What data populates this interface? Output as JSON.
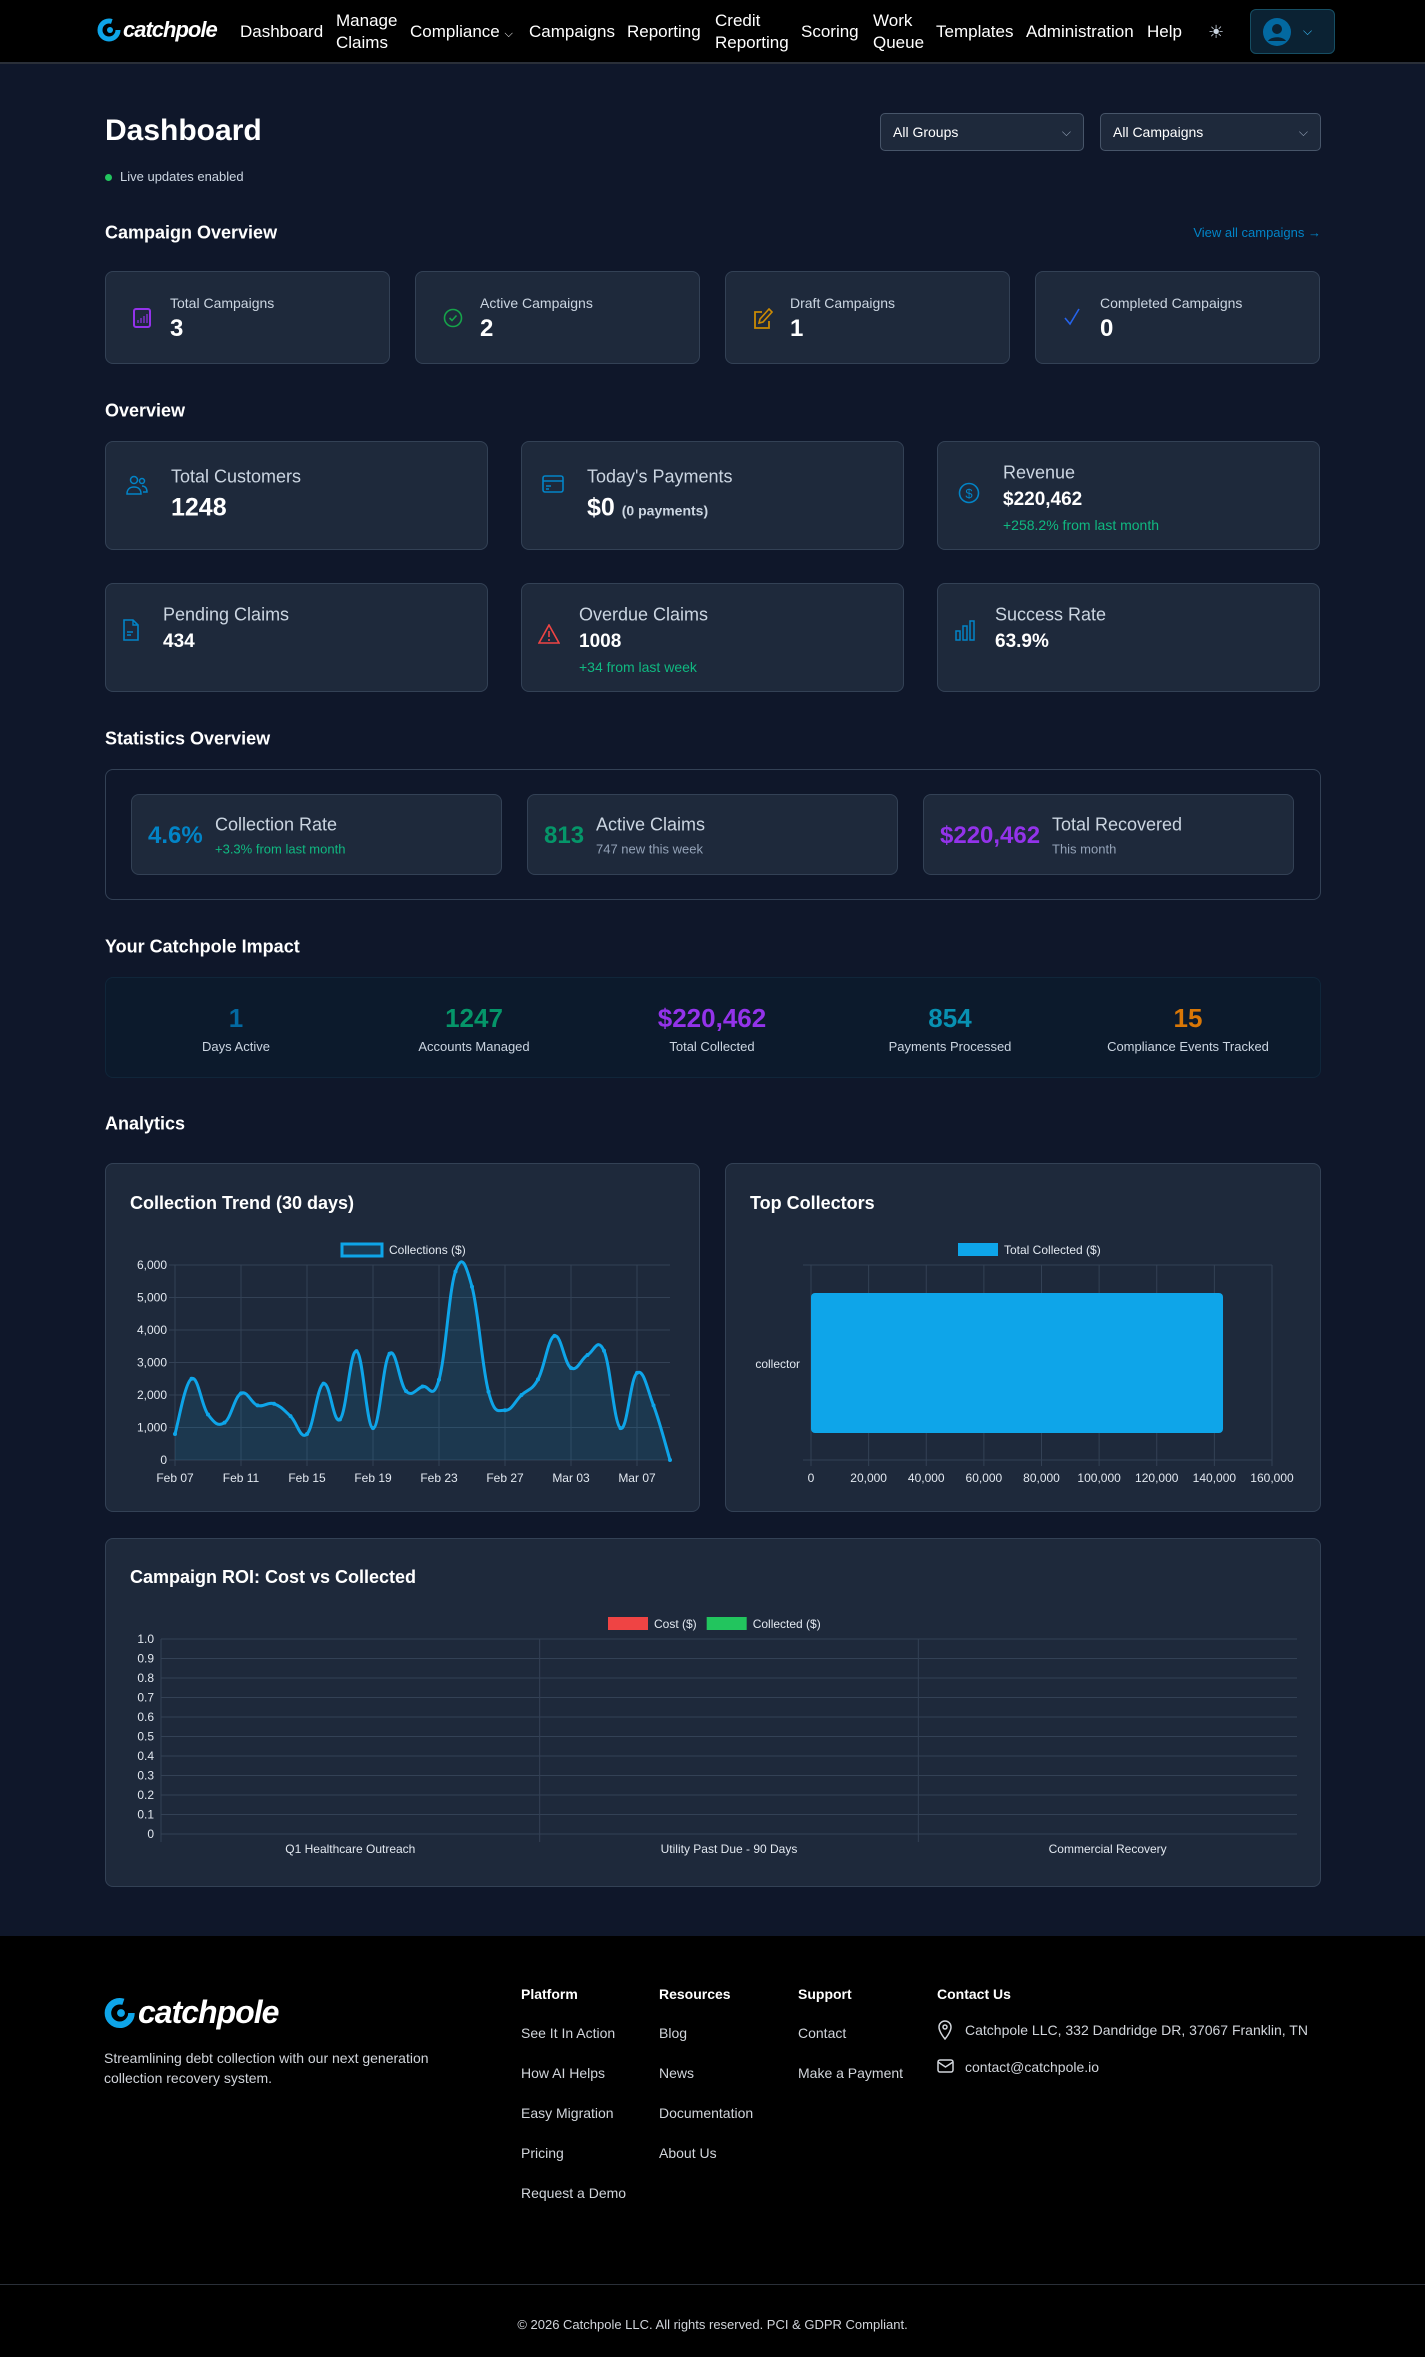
{
  "nav": {
    "brand": "catchpole",
    "items": [
      "Dashboard",
      "Manage Claims",
      "Compliance",
      "Campaigns",
      "Reporting",
      "Credit Reporting",
      "Scoring",
      "Work Queue",
      "Templates",
      "Administration",
      "Help"
    ],
    "manage_l1": "Manage",
    "manage_l2": "Claims",
    "credit_l1": "Credit",
    "credit_l2": "Reporting",
    "work_l1": "Work",
    "work_l2": "Queue",
    "theme_icon": "sun-icon",
    "avatar_icon": "user-circle-icon"
  },
  "header": {
    "title": "Dashboard",
    "live": "Live updates enabled",
    "group_select": "All Groups",
    "campaign_select": "All Campaigns"
  },
  "campaign_overview": {
    "title": "Campaign Overview",
    "view_all": "View all campaigns →",
    "cards": [
      {
        "label": "Total Campaigns",
        "value": "3",
        "icon": "chart-icon",
        "color": "#9333ea"
      },
      {
        "label": "Active Campaigns",
        "value": "2",
        "icon": "check-circle-icon",
        "color": "#16a34a"
      },
      {
        "label": "Draft Campaigns",
        "value": "1",
        "icon": "pencil-icon",
        "color": "#ca8a04"
      },
      {
        "label": "Completed Campaigns",
        "value": "0",
        "icon": "check-icon",
        "color": "#2563eb"
      }
    ]
  },
  "overview": {
    "title": "Overview",
    "cards": [
      {
        "label": "Total Customers",
        "value": "1248",
        "icon": "users-icon"
      },
      {
        "label": "Today's Payments",
        "value": "$0",
        "extra": "(0 payments)",
        "icon": "credit-card-icon"
      },
      {
        "label": "Revenue",
        "value": "$220,462",
        "sub": "+258.2% from last month",
        "icon": "dollar-icon"
      },
      {
        "label": "Pending Claims",
        "value": "434",
        "icon": "document-icon"
      },
      {
        "label": "Overdue Claims",
        "value": "1008",
        "sub": "+34 from last week",
        "icon": "warning-icon"
      },
      {
        "label": "Success Rate",
        "value": "63.9%",
        "icon": "bar-chart-icon"
      }
    ]
  },
  "statistics": {
    "title": "Statistics Overview",
    "cards": [
      {
        "value": "4.6%",
        "label": "Collection Rate",
        "sub": "+3.3% from last month",
        "color": "#0284c7"
      },
      {
        "value": "813",
        "label": "Active Claims",
        "sub": "747 new this week",
        "color": "#059669"
      },
      {
        "value": "$220,462",
        "label": "Total Recovered",
        "sub": "This month",
        "color": "#9333ea"
      }
    ]
  },
  "impact": {
    "title": "Your Catchpole Impact",
    "items": [
      {
        "value": "1",
        "label": "Days Active",
        "color": "#0369a1"
      },
      {
        "value": "1247",
        "label": "Accounts Managed",
        "color": "#059669"
      },
      {
        "value": "$220,462",
        "label": "Total Collected",
        "color": "#9333ea"
      },
      {
        "value": "854",
        "label": "Payments Processed",
        "color": "#0891b2"
      },
      {
        "value": "15",
        "label": "Compliance Events Tracked",
        "color": "#d97706"
      }
    ]
  },
  "analytics": {
    "title": "Analytics"
  },
  "chart_data": [
    {
      "type": "line",
      "title": "Collection Trend (30 days)",
      "legend": "Collections ($)",
      "color": "#0ea5e9",
      "x": [
        "Feb 07",
        "Feb 08",
        "Feb 09",
        "Feb 10",
        "Feb 11",
        "Feb 12",
        "Feb 13",
        "Feb 14",
        "Feb 15",
        "Feb 16",
        "Feb 17",
        "Feb 18",
        "Feb 19",
        "Feb 20",
        "Feb 21",
        "Feb 22",
        "Feb 23",
        "Feb 24",
        "Feb 25",
        "Feb 26",
        "Feb 27",
        "Feb 28",
        "Mar 01",
        "Mar 02",
        "Mar 03",
        "Mar 04",
        "Mar 05",
        "Mar 06",
        "Mar 07",
        "Mar 08",
        "Mar 09"
      ],
      "values": [
        800,
        2500,
        1400,
        1150,
        2050,
        1680,
        1730,
        1350,
        800,
        2350,
        1250,
        3350,
        980,
        3270,
        2120,
        2260,
        2470,
        5800,
        5330,
        2100,
        1530,
        2000,
        2480,
        3820,
        2830,
        3230,
        3360,
        980,
        2680,
        1680,
        0
      ],
      "xticks": [
        "Feb 07",
        "Feb 11",
        "Feb 15",
        "Feb 19",
        "Feb 23",
        "Feb 27",
        "Mar 03",
        "Mar 07"
      ],
      "yticks": [
        "0",
        "1,000",
        "2,000",
        "3,000",
        "4,000",
        "5,000",
        "6,000"
      ],
      "ylim": [
        0,
        6000
      ],
      "grid": true,
      "legend_position": "top"
    },
    {
      "type": "bar",
      "orientation": "horizontal",
      "title": "Top Collectors",
      "legend": "Total Collected ($)",
      "color": "#0ea5e9",
      "categories": [
        "collector"
      ],
      "values": [
        143000
      ],
      "xticks": [
        "0",
        "20,000",
        "40,000",
        "60,000",
        "80,000",
        "100,000",
        "120,000",
        "140,000",
        "160,000"
      ],
      "xlim": [
        0,
        160000
      ],
      "grid": true,
      "legend_position": "top"
    },
    {
      "type": "bar",
      "title": "Campaign ROI: Cost vs Collected",
      "categories": [
        "Q1 Healthcare Outreach",
        "Utility Past Due - 90 Days",
        "Commercial Recovery"
      ],
      "series": [
        {
          "name": "Cost ($)",
          "color": "#ef4444",
          "values": [
            0,
            0,
            0
          ]
        },
        {
          "name": "Collected ($)",
          "color": "#22c55e",
          "values": [
            0,
            0,
            0
          ]
        }
      ],
      "yticks": [
        "0",
        "0.1",
        "0.2",
        "0.3",
        "0.4",
        "0.5",
        "0.6",
        "0.7",
        "0.8",
        "0.9",
        "1.0"
      ],
      "ylim": [
        0,
        1
      ],
      "grid": true,
      "legend_position": "top"
    }
  ],
  "footer": {
    "brand": "catchpole",
    "tagline_1": "Streamlining debt collection with our next generation",
    "tagline_2": "collection recovery system.",
    "platform": {
      "title": "Platform",
      "links": [
        "See It In Action",
        "How AI Helps",
        "Easy Migration",
        "Pricing",
        "Request a Demo"
      ]
    },
    "resources": {
      "title": "Resources",
      "links": [
        "Blog",
        "News",
        "Documentation",
        "About Us"
      ]
    },
    "support": {
      "title": "Support",
      "links": [
        "Contact",
        "Make a Payment"
      ]
    },
    "contact": {
      "title": "Contact Us",
      "address": "Catchpole LLC, 332 Dandridge DR, 37067 Franklin, TN",
      "email": "contact@catchpole.io"
    },
    "copyright": "© 2026 Catchpole LLC. All rights reserved. PCI & GDPR Compliant."
  }
}
